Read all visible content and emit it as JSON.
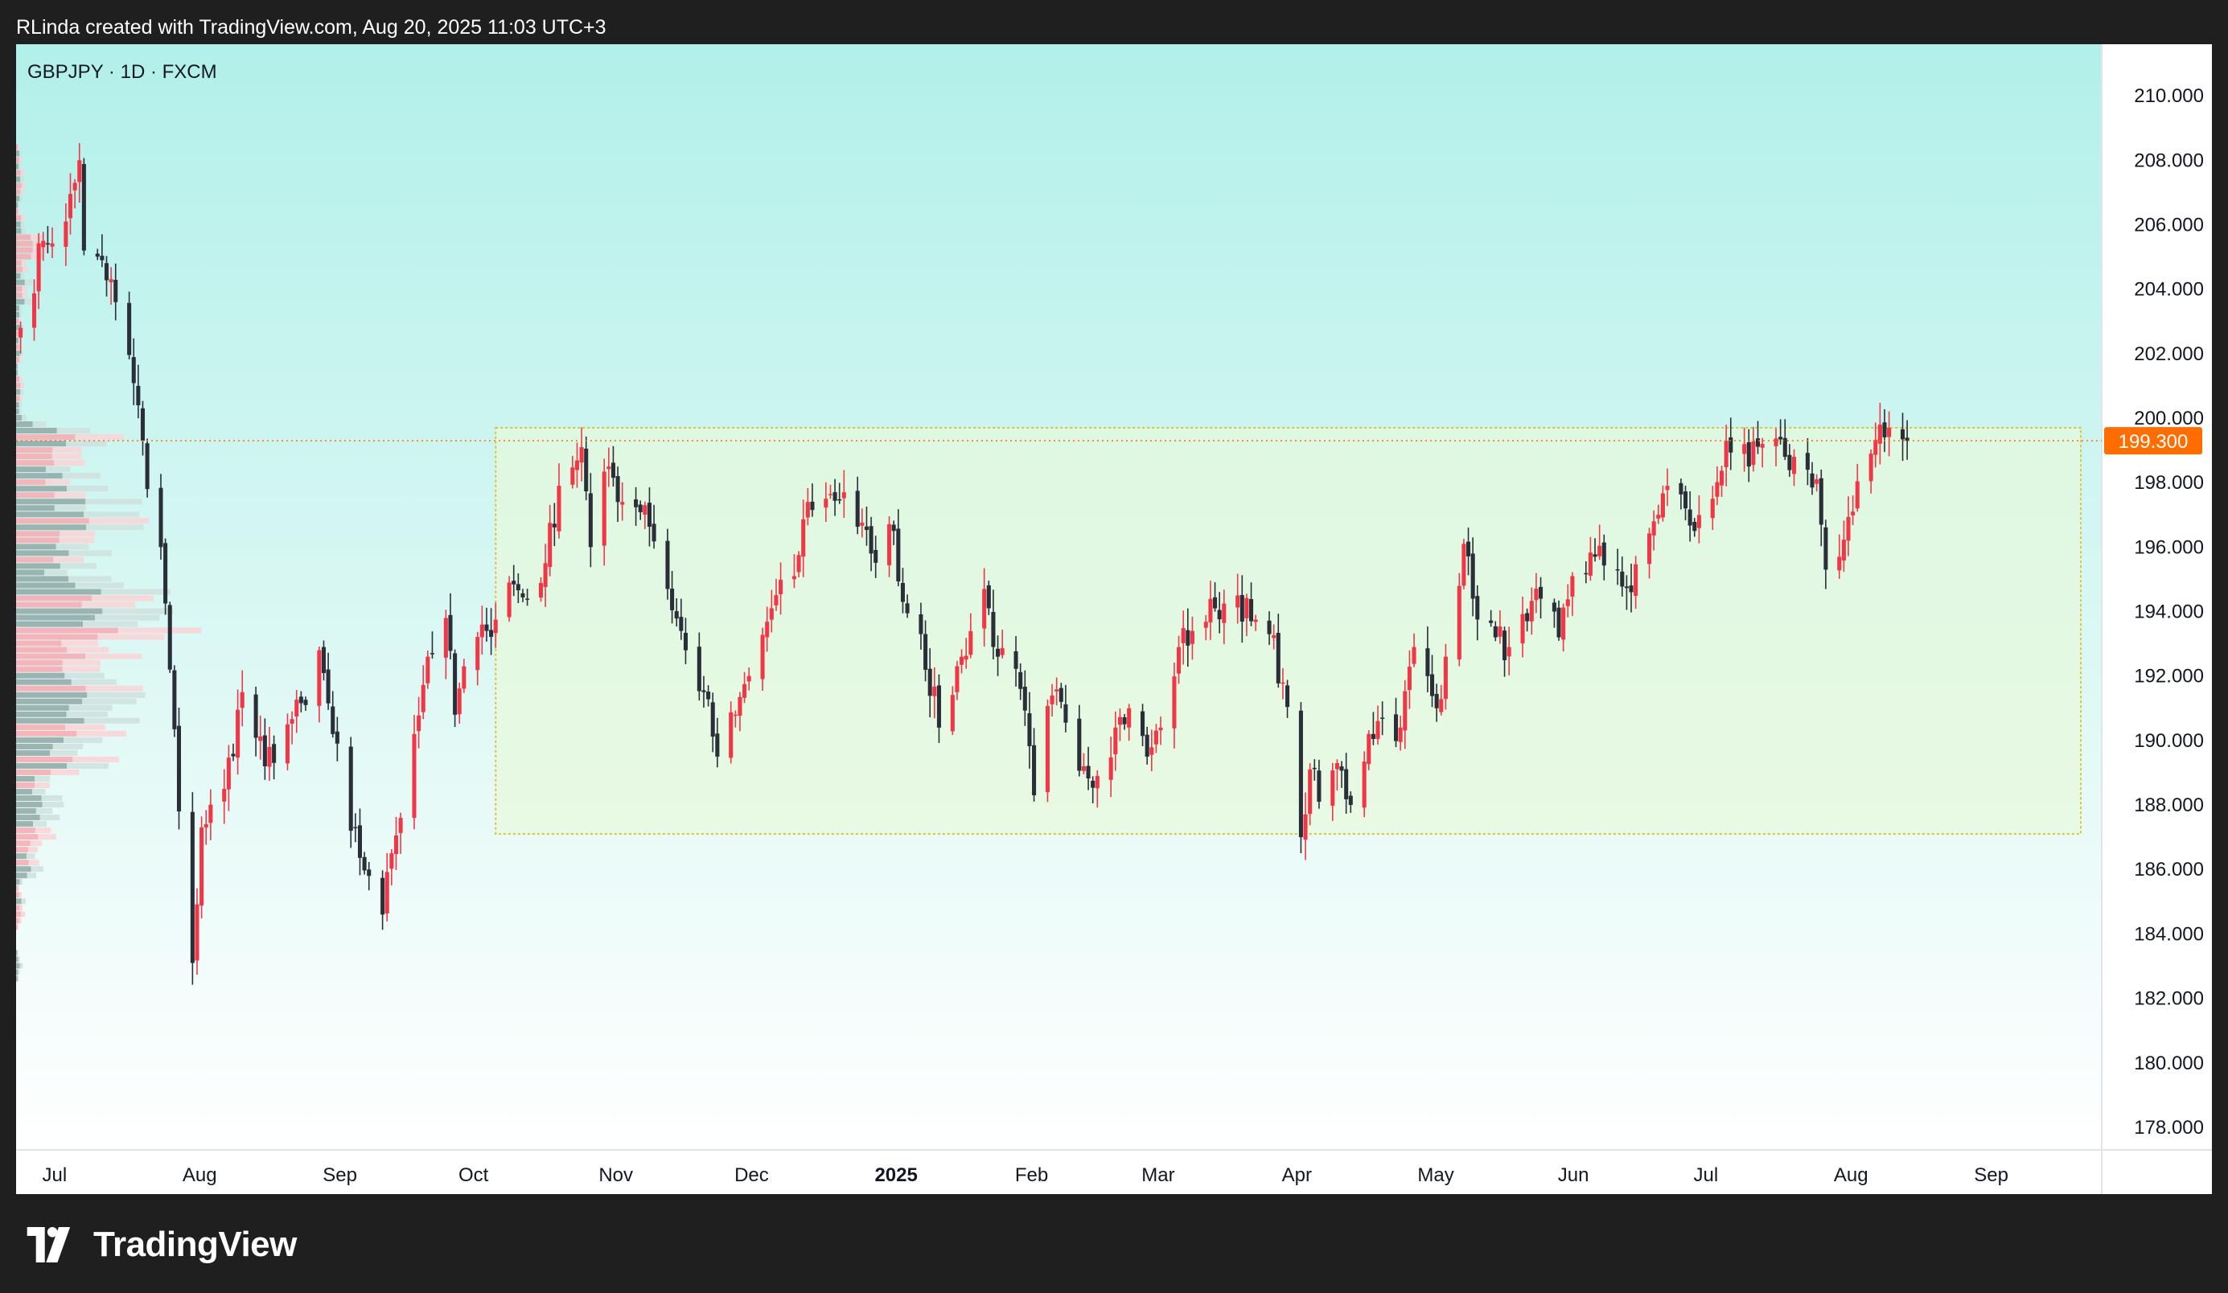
{
  "header": {
    "credit": "RLinda created with TradingView.com, Aug 20, 2025 11:03 UTC+3"
  },
  "footer": {
    "brand": "TradingView",
    "logo_icon": "tradingview-logo-icon"
  },
  "colors": {
    "bullish": "#f23645",
    "bearish": "#2a2e39",
    "accent": "#ff6d00",
    "range_fill": "#e8f9d8",
    "range_border": "#e0c13b",
    "bg_top": "#b2f0ea",
    "bg_bottom": "#ffffff"
  },
  "chart_data": {
    "type": "candlestick",
    "title": "GBPJPY · 1D · FXCM",
    "symbol": "GBPJPY",
    "interval": "1D",
    "exchange": "FXCM",
    "y_ticks": [
      "210.000",
      "208.000",
      "206.000",
      "204.000",
      "202.000",
      "200.000",
      "198.000",
      "196.000",
      "194.000",
      "192.000",
      "190.000",
      "188.000",
      "186.000",
      "184.000",
      "182.000",
      "180.000",
      "178.000"
    ],
    "ylim": [
      177.3,
      211.6
    ],
    "x_ticks": [
      {
        "label": "Jul",
        "date": "2024-07-01"
      },
      {
        "label": "Aug",
        "date": "2024-08-01"
      },
      {
        "label": "Sep",
        "date": "2024-09-01"
      },
      {
        "label": "Oct",
        "date": "2024-10-01"
      },
      {
        "label": "Nov",
        "date": "2024-11-01"
      },
      {
        "label": "Dec",
        "date": "2024-12-01"
      },
      {
        "label": "2025",
        "date": "2025-01-01",
        "bold": true
      },
      {
        "label": "Feb",
        "date": "2025-02-01"
      },
      {
        "label": "Mar",
        "date": "2025-03-01"
      },
      {
        "label": "Apr",
        "date": "2025-04-01"
      },
      {
        "label": "May",
        "date": "2025-05-01"
      },
      {
        "label": "Jun",
        "date": "2025-06-01"
      },
      {
        "label": "Jul",
        "date": "2025-07-01"
      },
      {
        "label": "Aug",
        "date": "2025-08-01"
      },
      {
        "label": "Sep",
        "date": "2025-09-01"
      }
    ],
    "xlim": [
      "2024-06-27",
      "2025-10-01"
    ],
    "last_price": {
      "label": "199.300",
      "value": 199.3
    },
    "range_zone": {
      "start": "2024-10-11",
      "end": "2025-10-01",
      "low": 187.1,
      "high": 199.7
    },
    "price_anchors": [
      [
        "2024-06-28",
        202.8
      ],
      [
        "2024-07-03",
        205.5
      ],
      [
        "2024-07-08",
        206.1
      ],
      [
        "2024-07-10",
        207.3
      ],
      [
        "2024-07-11",
        208.0
      ],
      [
        "2024-07-12",
        205.2
      ],
      [
        "2024-07-16",
        204.9
      ],
      [
        "2024-07-19",
        203.6
      ],
      [
        "2024-07-24",
        200.4
      ],
      [
        "2024-07-26",
        197.8
      ],
      [
        "2024-07-29",
        196.0
      ],
      [
        "2024-07-31",
        192.2
      ],
      [
        "2024-08-02",
        187.8
      ],
      [
        "2024-08-05",
        183.1
      ],
      [
        "2024-08-07",
        187.3
      ],
      [
        "2024-08-12",
        188.5
      ],
      [
        "2024-08-16",
        191.5
      ],
      [
        "2024-08-21",
        189.2
      ],
      [
        "2024-08-26",
        190.5
      ],
      [
        "2024-08-30",
        191.1
      ],
      [
        "2024-09-02",
        192.8
      ],
      [
        "2024-09-05",
        190.2
      ],
      [
        "2024-09-09",
        187.2
      ],
      [
        "2024-09-13",
        185.8
      ],
      [
        "2024-09-16",
        184.6
      ],
      [
        "2024-09-18",
        186.5
      ],
      [
        "2024-09-23",
        190.2
      ],
      [
        "2024-09-26",
        192.6
      ],
      [
        "2024-09-30",
        193.8
      ],
      [
        "2024-10-02",
        190.8
      ],
      [
        "2024-10-04",
        192.3
      ],
      [
        "2024-10-09",
        193.4
      ],
      [
        "2024-10-14",
        194.9
      ],
      [
        "2024-10-18",
        194.4
      ],
      [
        "2024-10-22",
        195.5
      ],
      [
        "2024-10-25",
        197.9
      ],
      [
        "2024-10-30",
        199.1
      ],
      [
        "2024-11-01",
        196.0
      ],
      [
        "2024-11-05",
        198.5
      ],
      [
        "2024-11-08",
        197.4
      ],
      [
        "2024-11-13",
        197.3
      ],
      [
        "2024-11-18",
        194.7
      ],
      [
        "2024-11-22",
        192.8
      ],
      [
        "2024-11-26",
        191.5
      ],
      [
        "2024-11-29",
        189.5
      ],
      [
        "2024-12-03",
        190.8
      ],
      [
        "2024-12-06",
        192.0
      ],
      [
        "2024-12-11",
        194.1
      ],
      [
        "2024-12-16",
        195.1
      ],
      [
        "2024-12-19",
        197.4
      ],
      [
        "2024-12-23",
        197.5
      ],
      [
        "2024-12-27",
        197.7
      ],
      [
        "2025-01-02",
        195.8
      ],
      [
        "2025-01-07",
        196.5
      ],
      [
        "2025-01-09",
        194.3
      ],
      [
        "2025-01-13",
        193.3
      ],
      [
        "2025-01-17",
        190.4
      ],
      [
        "2025-01-22",
        192.6
      ],
      [
        "2025-01-27",
        194.7
      ],
      [
        "2025-01-30",
        192.6
      ],
      [
        "2025-02-04",
        191.6
      ],
      [
        "2025-02-07",
        188.3
      ],
      [
        "2025-02-11",
        191.4
      ],
      [
        "2025-02-13",
        191.2
      ],
      [
        "2025-02-18",
        189.2
      ],
      [
        "2025-02-21",
        188.9
      ],
      [
        "2025-02-25",
        190.4
      ],
      [
        "2025-02-28",
        191.0
      ],
      [
        "2025-03-04",
        189.5
      ],
      [
        "2025-03-07",
        190.4
      ],
      [
        "2025-03-11",
        192.9
      ],
      [
        "2025-03-14",
        193.4
      ],
      [
        "2025-03-19",
        194.1
      ],
      [
        "2025-03-24",
        194.5
      ],
      [
        "2025-03-27",
        193.7
      ],
      [
        "2025-03-31",
        193.3
      ],
      [
        "2025-04-03",
        191.8
      ],
      [
        "2025-04-07",
        187.0
      ],
      [
        "2025-04-09",
        189.1
      ],
      [
        "2025-04-11",
        188.1
      ],
      [
        "2025-04-15",
        189.3
      ],
      [
        "2025-04-18",
        188.0
      ],
      [
        "2025-04-22",
        190.2
      ],
      [
        "2025-04-25",
        190.7
      ],
      [
        "2025-04-29",
        190.4
      ],
      [
        "2025-05-02",
        192.9
      ],
      [
        "2025-05-07",
        191.0
      ],
      [
        "2025-05-09",
        192.6
      ],
      [
        "2025-05-13",
        196.1
      ],
      [
        "2025-05-15",
        194.4
      ],
      [
        "2025-05-20",
        193.2
      ],
      [
        "2025-05-23",
        192.9
      ],
      [
        "2025-05-27",
        193.7
      ],
      [
        "2025-05-30",
        194.4
      ],
      [
        "2025-06-03",
        193.2
      ],
      [
        "2025-06-06",
        195.1
      ],
      [
        "2025-06-11",
        195.7
      ],
      [
        "2025-06-16",
        195.3
      ],
      [
        "2025-06-19",
        194.6
      ],
      [
        "2025-06-24",
        196.8
      ],
      [
        "2025-06-27",
        197.9
      ],
      [
        "2025-07-01",
        197.2
      ],
      [
        "2025-07-03",
        196.5
      ],
      [
        "2025-07-07",
        197.5
      ],
      [
        "2025-07-10",
        199.3
      ],
      [
        "2025-07-15",
        198.5
      ],
      [
        "2025-07-18",
        199.2
      ],
      [
        "2025-07-23",
        198.8
      ],
      [
        "2025-07-28",
        198.4
      ],
      [
        "2025-07-30",
        198.1
      ],
      [
        "2025-08-01",
        195.3
      ],
      [
        "2025-08-04",
        195.7
      ],
      [
        "2025-08-07",
        197.1
      ],
      [
        "2025-08-11",
        198.9
      ],
      [
        "2025-08-13",
        199.8
      ],
      [
        "2025-08-15",
        199.7
      ],
      [
        "2025-08-19",
        199.3
      ]
    ],
    "volume_profile": "horizontal volume-by-price histogram along left edge",
    "grid": false
  }
}
